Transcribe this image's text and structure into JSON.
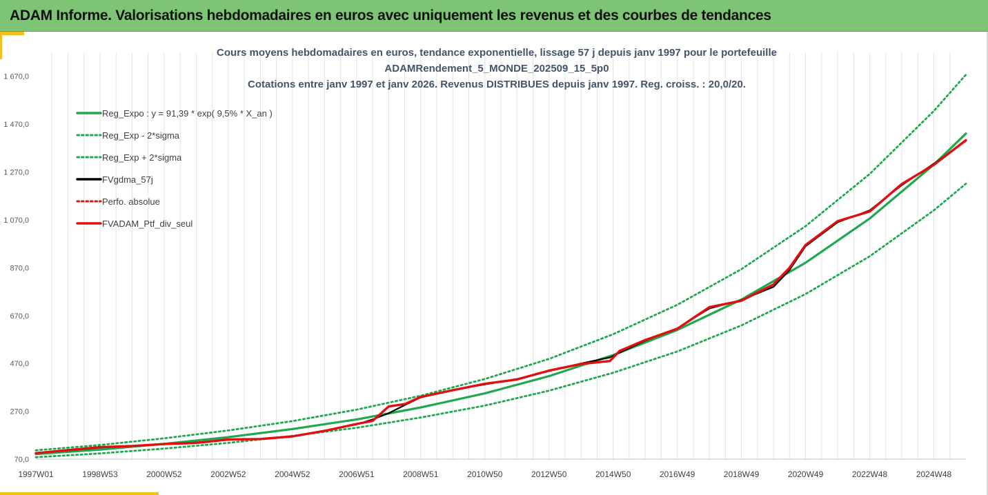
{
  "header": {
    "title": "ADAM Informe. Valorisations hebdomadaires en euros avec uniquement les revenus et des courbes de tendances"
  },
  "chart_data": {
    "type": "line",
    "title_lines": [
      "Cours moyens hebdomadaires  en euros, tendance exponentielle, lissage 57 j depuis janv 1997 pour le portefeuille",
      "ADAMRendement_5_MONDE_202509_15_5p0",
      "Cotations entre janv 1997 et janv 2026. Revenus DISTRIBUES depuis janv 1997. Reg. croiss. : 20,0/20."
    ],
    "xlim": [
      1997.0,
      2026.0
    ],
    "ylim": [
      70,
      1770
    ],
    "y_ticks": [
      70,
      270,
      470,
      670,
      870,
      1070,
      1270,
      1470,
      1670
    ],
    "y_tick_labels": [
      "70,0",
      "270,0",
      "470,0",
      "670,0",
      "870,0",
      "1 070,0",
      "1 270,0",
      "1 470,0",
      "1 670,0"
    ],
    "x_ticks": [
      {
        "label": "1997W01",
        "x": 1997.0
      },
      {
        "label": "1998W53",
        "x": 1999.0
      },
      {
        "label": "2000W52",
        "x": 2001.0
      },
      {
        "label": "2002W52",
        "x": 2003.0
      },
      {
        "label": "2004W52",
        "x": 2005.0
      },
      {
        "label": "2006W51",
        "x": 2007.0
      },
      {
        "label": "2008W51",
        "x": 2009.0
      },
      {
        "label": "2010W50",
        "x": 2011.0
      },
      {
        "label": "2012W50",
        "x": 2013.0
      },
      {
        "label": "2014W50",
        "x": 2015.0
      },
      {
        "label": "2016W49",
        "x": 2017.0
      },
      {
        "label": "2018W49",
        "x": 2019.0
      },
      {
        "label": "2020W49",
        "x": 2021.0
      },
      {
        "label": "2022W48",
        "x": 2023.0
      },
      {
        "label": "2024W48",
        "x": 2025.0
      }
    ],
    "grid": "vertical",
    "legend_position": "top-left",
    "series": [
      {
        "name": "Reg_Expo : y = 91,39 * exp( 9,5% *  X_an )",
        "color": "#1fa84f",
        "style": "solid",
        "x": [
          1997.0,
          1999.0,
          2001.0,
          2003.0,
          2005.0,
          2007.0,
          2009.0,
          2011.0,
          2013.0,
          2015.0,
          2017.0,
          2019.0,
          2021.0,
          2023.0,
          2025.0,
          2026.0
        ],
        "y": [
          91,
          110,
          134,
          162,
          196,
          236,
          286,
          345,
          417,
          505,
          610,
          737,
          891,
          1076,
          1301,
          1431
        ]
      },
      {
        "name": "Reg_Exp - 2*sigma",
        "color": "#1fa84f",
        "style": "dotted",
        "x": [
          1997.0,
          1999.0,
          2001.0,
          2003.0,
          2005.0,
          2007.0,
          2009.0,
          2011.0,
          2013.0,
          2015.0,
          2017.0,
          2019.0,
          2021.0,
          2023.0,
          2025.0,
          2026.0
        ],
        "y": [
          78,
          94,
          114,
          138,
          167,
          201,
          244,
          294,
          356,
          431,
          520,
          629,
          760,
          918,
          1110,
          1221
        ]
      },
      {
        "name": "Reg_Exp + 2*sigma",
        "color": "#1fa84f",
        "style": "dotted",
        "x": [
          1997.0,
          1999.0,
          2001.0,
          2003.0,
          2005.0,
          2007.0,
          2009.0,
          2011.0,
          2013.0,
          2015.0,
          2017.0,
          2019.0,
          2021.0,
          2023.0,
          2025.0,
          2026.0
        ],
        "y": [
          107,
          129,
          157,
          190,
          229,
          277,
          335,
          405,
          489,
          592,
          715,
          864,
          1044,
          1262,
          1525,
          1677
        ]
      },
      {
        "name": "FVgdma_57j",
        "color": "#000000",
        "style": "solid",
        "x": [
          1997.0,
          1998.0,
          1999.0,
          2000.0,
          2001.0,
          2002.0,
          2003.0,
          2004.0,
          2005.0,
          2006.0,
          2007.0,
          2007.5,
          2008.0,
          2008.5,
          2009.0,
          2010.0,
          2011.0,
          2012.0,
          2013.0,
          2014.0,
          2014.9,
          2015.2,
          2016.0,
          2017.0,
          2018.0,
          2019.0,
          2020.0,
          2020.5,
          2021.0,
          2022.0,
          2023.0,
          2024.0,
          2025.0,
          2026.0
        ],
        "y": [
          96,
          106,
          118,
          126,
          132,
          140,
          150,
          155,
          166,
          190,
          215,
          236,
          262,
          296,
          328,
          360,
          382,
          405,
          438,
          470,
          495,
          515,
          565,
          617,
          700,
          735,
          790,
          860,
          960,
          1060,
          1110,
          1215,
          1305,
          1400
        ]
      },
      {
        "name": "Perfo. absolue",
        "color": "#e01010",
        "style": "dotted",
        "x": [
          1997.0,
          1998.0,
          1999.0,
          2000.0,
          2001.0,
          2002.0,
          2003.0,
          2004.0,
          2005.0,
          2006.0,
          2007.0,
          2007.5,
          2008.0,
          2008.5,
          2009.0,
          2010.0,
          2011.0,
          2012.0,
          2013.0,
          2014.0,
          2014.9,
          2015.2,
          2016.0,
          2017.0,
          2018.0,
          2019.0,
          2020.0,
          2020.5,
          2021.0,
          2022.0,
          2023.0,
          2024.0,
          2025.0,
          2026.0
        ],
        "y": [
          95,
          108,
          120,
          125,
          133,
          138,
          152,
          154,
          165,
          188,
          217,
          230,
          290,
          300,
          330,
          358,
          385,
          403,
          440,
          468,
          480,
          522,
          568,
          615,
          705,
          732,
          800,
          870,
          965,
          1065,
          1105,
          1220,
          1300,
          1403
        ]
      },
      {
        "name": "FVADAM_Ptf_div_seul",
        "color": "#e01010",
        "style": "solid",
        "x": [
          1997.0,
          1998.0,
          1999.0,
          2000.0,
          2001.0,
          2002.0,
          2003.0,
          2004.0,
          2005.0,
          2006.0,
          2007.0,
          2007.5,
          2008.0,
          2008.5,
          2009.0,
          2010.0,
          2011.0,
          2012.0,
          2013.0,
          2014.0,
          2014.9,
          2015.2,
          2016.0,
          2017.0,
          2018.0,
          2019.0,
          2020.0,
          2020.5,
          2021.0,
          2022.0,
          2023.0,
          2024.0,
          2025.0,
          2026.0
        ],
        "y": [
          95,
          108,
          120,
          125,
          133,
          138,
          152,
          154,
          165,
          188,
          217,
          230,
          290,
          300,
          330,
          358,
          385,
          403,
          440,
          468,
          480,
          522,
          568,
          615,
          705,
          732,
          800,
          870,
          965,
          1065,
          1105,
          1220,
          1300,
          1403
        ]
      }
    ]
  }
}
